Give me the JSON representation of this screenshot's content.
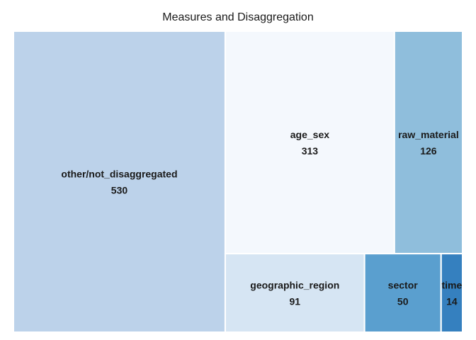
{
  "chart_data": {
    "type": "treemap",
    "title": "Measures and Disaggregation",
    "items": [
      {
        "name": "other/not_disaggregated",
        "value": 530,
        "color": "#bcd2ea"
      },
      {
        "name": "age_sex",
        "value": 313,
        "color": "#f4f8fd"
      },
      {
        "name": "raw_material",
        "value": 126,
        "color": "#8fbedc"
      },
      {
        "name": "geographic_region",
        "value": 91,
        "color": "#d6e5f3"
      },
      {
        "name": "sector",
        "value": 50,
        "color": "#5a9fcf"
      },
      {
        "name": "time",
        "value": 14,
        "color": "#3580bf"
      }
    ]
  }
}
